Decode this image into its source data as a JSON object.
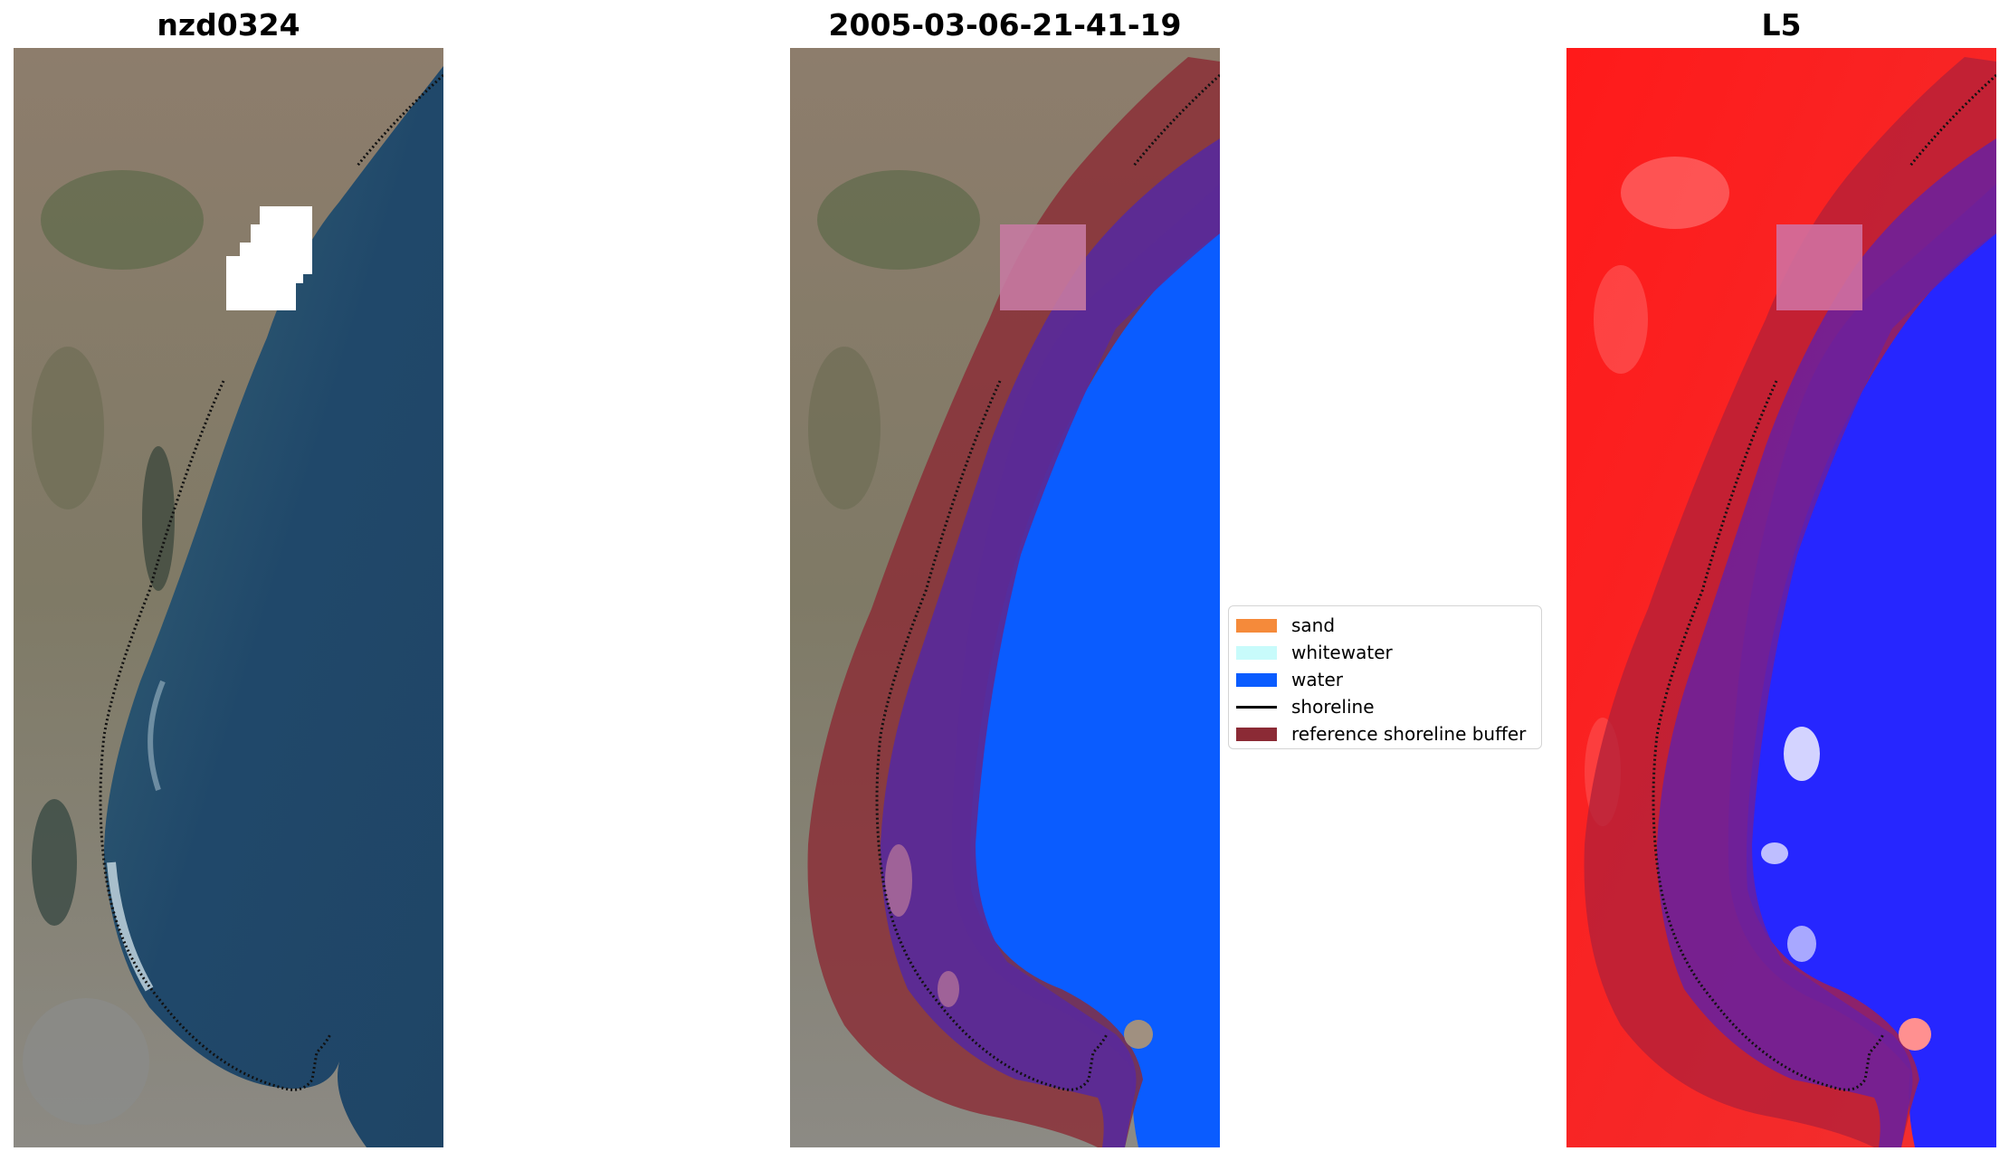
{
  "panels": [
    {
      "title": "nzd0324"
    },
    {
      "title": "2005-03-06-21-41-19"
    },
    {
      "title": "L5"
    }
  ],
  "legend": {
    "items": [
      {
        "label": "sand",
        "color": "#f58a3a"
      },
      {
        "label": "whitewater",
        "color": "#c8fbfb"
      },
      {
        "label": "water",
        "color": "#0a5cff"
      },
      {
        "label": "shoreline",
        "color": "#000000"
      },
      {
        "label": "reference shoreline buffer",
        "color": "#8b2a35"
      }
    ]
  },
  "colors": {
    "land_rgb": "#8f8170",
    "ocean_rgb": "#244c6b",
    "water_class": "#0a5cff",
    "buffer": "#8b2a35",
    "buffer_on_water": "#5a2a98",
    "mndwi_land": "#ff1a1a",
    "mndwi_water": "#1a22ff",
    "cloud_mask": "#ffffff"
  }
}
